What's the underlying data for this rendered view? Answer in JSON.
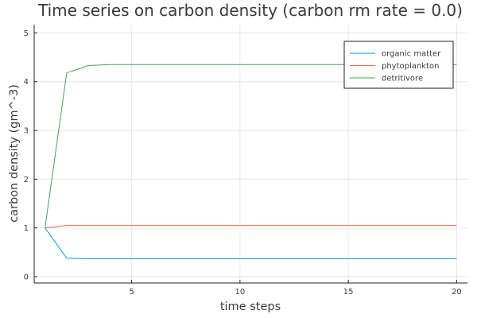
{
  "chart_data": {
    "type": "line",
    "title": "Time series on carbon density (carbon rm rate = 0.0)",
    "xlabel": "time steps",
    "ylabel": "carbon density (gm^-3)",
    "xlim": [
      0.5,
      20.5
    ],
    "ylim": [
      -0.13,
      5.17
    ],
    "xticks": [
      5,
      10,
      15,
      20
    ],
    "yticks": [
      0,
      1,
      2,
      3,
      4,
      5
    ],
    "grid": true,
    "legend_position": "top-right",
    "x": [
      1,
      2,
      3,
      4,
      5,
      6,
      7,
      8,
      9,
      10,
      11,
      12,
      13,
      14,
      15,
      16,
      17,
      18,
      19,
      20
    ],
    "series": [
      {
        "name": "organic matter",
        "color": "#009AFA",
        "values": [
          1.0,
          0.38,
          0.37,
          0.37,
          0.37,
          0.37,
          0.37,
          0.37,
          0.37,
          0.37,
          0.37,
          0.37,
          0.37,
          0.37,
          0.37,
          0.37,
          0.37,
          0.37,
          0.37,
          0.37
        ]
      },
      {
        "name": "phytoplankton",
        "color": "#E36F47",
        "values": [
          1.0,
          1.05,
          1.05,
          1.05,
          1.05,
          1.05,
          1.05,
          1.05,
          1.05,
          1.05,
          1.05,
          1.05,
          1.05,
          1.05,
          1.05,
          1.05,
          1.05,
          1.05,
          1.05,
          1.05
        ]
      },
      {
        "name": "detritivore",
        "color": "#3EA44E",
        "values": [
          1.0,
          4.18,
          4.33,
          4.35,
          4.35,
          4.35,
          4.35,
          4.35,
          4.35,
          4.35,
          4.35,
          4.35,
          4.35,
          4.35,
          4.35,
          4.35,
          4.35,
          4.35,
          4.35,
          4.35
        ]
      }
    ]
  }
}
